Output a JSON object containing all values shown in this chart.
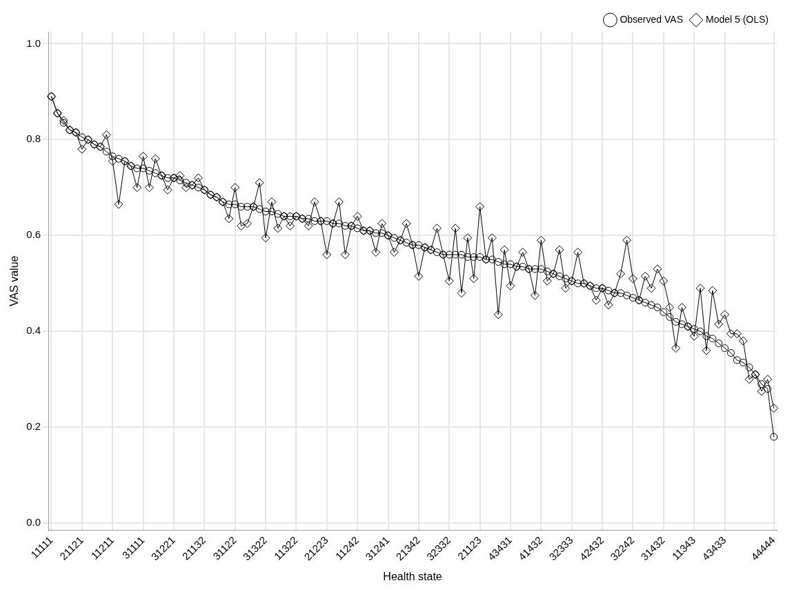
{
  "chart_data": {
    "type": "line",
    "xlabel": "Health state",
    "ylabel": "VAS value",
    "categories": [
      "11111",
      null,
      null,
      null,
      null,
      "21121",
      null,
      null,
      null,
      null,
      "11211",
      null,
      null,
      null,
      null,
      "31111",
      null,
      null,
      null,
      null,
      "31221",
      null,
      null,
      null,
      null,
      "21132",
      null,
      null,
      null,
      null,
      "31122",
      null,
      null,
      null,
      null,
      "31322",
      null,
      null,
      null,
      null,
      "11322",
      null,
      null,
      null,
      null,
      "21223",
      null,
      null,
      null,
      null,
      "11242",
      null,
      null,
      null,
      null,
      "31241",
      null,
      null,
      null,
      null,
      "21342",
      null,
      null,
      null,
      null,
      "32332",
      null,
      null,
      null,
      null,
      "21123",
      null,
      null,
      null,
      null,
      "43431",
      null,
      null,
      null,
      null,
      "41432",
      null,
      null,
      null,
      null,
      "32333",
      null,
      null,
      null,
      null,
      "42432",
      null,
      null,
      null,
      null,
      "32242",
      null,
      null,
      null,
      null,
      "31432",
      null,
      null,
      null,
      null,
      "11343",
      null,
      null,
      null,
      null,
      "43433",
      null,
      null,
      null,
      null,
      null,
      null,
      null,
      "44444"
    ],
    "series": [
      {
        "name": "Observed VAS",
        "color": "#000000",
        "marker": "circle",
        "values": [
          0.89,
          0.855,
          0.835,
          0.82,
          0.815,
          0.805,
          0.8,
          0.79,
          0.785,
          0.775,
          0.765,
          0.76,
          0.755,
          0.745,
          0.74,
          0.74,
          0.735,
          0.73,
          0.725,
          0.72,
          0.72,
          0.715,
          0.71,
          0.705,
          0.7,
          0.695,
          0.685,
          0.68,
          0.67,
          0.665,
          0.665,
          0.66,
          0.66,
          0.66,
          0.655,
          0.65,
          0.65,
          0.645,
          0.64,
          0.64,
          0.64,
          0.635,
          0.635,
          0.63,
          0.63,
          0.63,
          0.625,
          0.625,
          0.62,
          0.62,
          0.615,
          0.61,
          0.61,
          0.605,
          0.605,
          0.6,
          0.595,
          0.59,
          0.585,
          0.58,
          0.58,
          0.575,
          0.57,
          0.565,
          0.56,
          0.56,
          0.56,
          0.56,
          0.555,
          0.555,
          0.555,
          0.55,
          0.55,
          0.545,
          0.54,
          0.54,
          0.535,
          0.535,
          0.53,
          0.53,
          0.53,
          0.525,
          0.52,
          0.515,
          0.51,
          0.505,
          0.5,
          0.5,
          0.495,
          0.49,
          0.49,
          0.485,
          0.48,
          0.48,
          0.475,
          0.47,
          0.465,
          0.46,
          0.455,
          0.45,
          0.44,
          0.43,
          0.42,
          0.415,
          0.41,
          0.405,
          0.4,
          0.39,
          0.385,
          0.375,
          0.365,
          0.355,
          0.34,
          0.335,
          0.325,
          0.31,
          0.29,
          0.28,
          0.18
        ]
      },
      {
        "name": "Model 5 (OLS)",
        "color": "#000000",
        "marker": "diamond",
        "values": [
          0.89,
          0.855,
          0.84,
          0.82,
          0.815,
          0.78,
          0.8,
          0.79,
          0.785,
          0.81,
          0.755,
          0.665,
          0.755,
          0.745,
          0.7,
          0.765,
          0.7,
          0.76,
          0.725,
          0.695,
          0.72,
          0.725,
          0.7,
          0.705,
          0.72,
          0.695,
          0.685,
          0.68,
          0.67,
          0.635,
          0.7,
          0.62,
          0.625,
          0.66,
          0.71,
          0.595,
          0.67,
          0.615,
          0.64,
          0.62,
          0.64,
          0.635,
          0.62,
          0.67,
          0.63,
          0.56,
          0.625,
          0.67,
          0.56,
          0.62,
          0.64,
          0.61,
          0.61,
          0.565,
          0.625,
          0.6,
          0.565,
          0.59,
          0.625,
          0.58,
          0.515,
          0.575,
          0.57,
          0.615,
          0.56,
          0.505,
          0.615,
          0.48,
          0.595,
          0.51,
          0.66,
          0.55,
          0.595,
          0.435,
          0.57,
          0.495,
          0.535,
          0.565,
          0.53,
          0.475,
          0.59,
          0.505,
          0.52,
          0.57,
          0.49,
          0.505,
          0.565,
          0.5,
          0.495,
          0.465,
          0.49,
          0.455,
          0.48,
          0.52,
          0.59,
          0.51,
          0.465,
          0.515,
          0.49,
          0.53,
          0.505,
          0.45,
          0.365,
          0.45,
          0.41,
          0.39,
          0.49,
          0.36,
          0.485,
          0.415,
          0.435,
          0.395,
          0.395,
          0.38,
          0.3,
          0.31,
          0.275,
          0.3,
          0.24
        ]
      }
    ],
    "ylim": [
      -0.015,
      1.025
    ],
    "yticks": [
      {
        "value": 0,
        "label": "0.0"
      },
      {
        "value": 0.2,
        "label": "0.2"
      },
      {
        "value": 0.4,
        "label": "0.4"
      },
      {
        "value": 0.6,
        "label": "0.6"
      },
      {
        "value": 0.8,
        "label": "0.8"
      },
      {
        "value": 1,
        "label": "1.0"
      }
    ],
    "grid": true,
    "legend": "top right",
    "line_style": "solid"
  }
}
